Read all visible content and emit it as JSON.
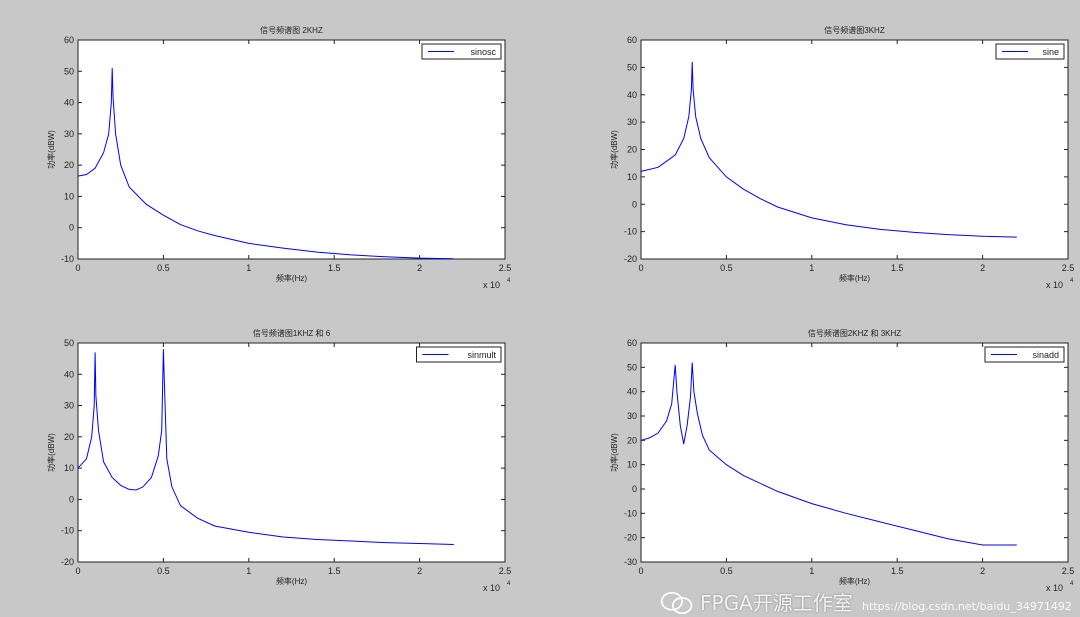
{
  "chart_data": [
    {
      "type": "line",
      "title": "信号频谱图 2KHZ",
      "xlabel": "频率(Hz)",
      "ylabel": "功率(dBW)",
      "x_multiplier": "x 10",
      "x_multiplier_exp": "4",
      "xlim": [
        0,
        25000
      ],
      "ylim": [
        -10,
        60
      ],
      "xticks": [
        "0",
        "0.5",
        "1",
        "1.5",
        "2",
        "2.5"
      ],
      "yticks": [
        "-10",
        "0",
        "10",
        "20",
        "30",
        "40",
        "50",
        "60"
      ],
      "legend_position": "top-right",
      "grid": false,
      "series": [
        {
          "name": "sinosc",
          "color": "#0000ff",
          "points": [
            [
              0,
              16.5
            ],
            [
              500,
              17
            ],
            [
              1000,
              19
            ],
            [
              1500,
              24
            ],
            [
              1800,
              30
            ],
            [
              1950,
              40
            ],
            [
              2000,
              51
            ],
            [
              2050,
              42
            ],
            [
              2200,
              30
            ],
            [
              2500,
              20
            ],
            [
              3000,
              13
            ],
            [
              4000,
              7.5
            ],
            [
              5000,
              4
            ],
            [
              6000,
              1
            ],
            [
              7000,
              -1
            ],
            [
              8000,
              -2.5
            ],
            [
              10000,
              -5
            ],
            [
              12000,
              -6.5
            ],
            [
              14000,
              -7.8
            ],
            [
              16000,
              -8.7
            ],
            [
              18000,
              -9.3
            ],
            [
              20000,
              -9.7
            ],
            [
              22000,
              -9.9
            ]
          ]
        }
      ]
    },
    {
      "type": "line",
      "title": "信号频谱图3KHZ",
      "xlabel": "频率(Hz)",
      "ylabel": "功率(dBW)",
      "x_multiplier": "x 10",
      "x_multiplier_exp": "4",
      "xlim": [
        0,
        25000
      ],
      "ylim": [
        -20,
        60
      ],
      "xticks": [
        "0",
        "0.5",
        "1",
        "1.5",
        "2",
        "2.5"
      ],
      "yticks": [
        "-20",
        "-10",
        "0",
        "10",
        "20",
        "30",
        "40",
        "50",
        "60"
      ],
      "legend_position": "top-right",
      "grid": false,
      "series": [
        {
          "name": "sine",
          "color": "#0000ff",
          "points": [
            [
              0,
              12
            ],
            [
              1000,
              13.5
            ],
            [
              2000,
              18
            ],
            [
              2500,
              24
            ],
            [
              2800,
              32
            ],
            [
              2950,
              42
            ],
            [
              3000,
              52
            ],
            [
              3050,
              42
            ],
            [
              3200,
              32
            ],
            [
              3500,
              24
            ],
            [
              4000,
              17
            ],
            [
              5000,
              10
            ],
            [
              6000,
              5.5
            ],
            [
              7000,
              2
            ],
            [
              8000,
              -1
            ],
            [
              10000,
              -5
            ],
            [
              12000,
              -7.5
            ],
            [
              14000,
              -9.2
            ],
            [
              16000,
              -10.3
            ],
            [
              18000,
              -11.1
            ],
            [
              20000,
              -11.7
            ],
            [
              22000,
              -12
            ]
          ]
        }
      ]
    },
    {
      "type": "line",
      "title": "信号频谱图1KHZ 和 6",
      "xlabel": "频率(Hz)",
      "ylabel": "功率(dBW)",
      "x_multiplier": "x 10",
      "x_multiplier_exp": "4",
      "xlim": [
        0,
        25000
      ],
      "ylim": [
        -20,
        50
      ],
      "xticks": [
        "0",
        "0.5",
        "1",
        "1.5",
        "2",
        "2.5"
      ],
      "yticks": [
        "-20",
        "-10",
        "0",
        "10",
        "20",
        "30",
        "40",
        "50"
      ],
      "legend_position": "top-right",
      "grid": false,
      "series": [
        {
          "name": "sinmult",
          "color": "#0000ff",
          "points": [
            [
              0,
              10
            ],
            [
              500,
              13
            ],
            [
              800,
              20
            ],
            [
              950,
              30
            ],
            [
              1000,
              47
            ],
            [
              1050,
              33
            ],
            [
              1200,
              22
            ],
            [
              1500,
              12
            ],
            [
              2000,
              7
            ],
            [
              2500,
              4.5
            ],
            [
              3000,
              3.2
            ],
            [
              3400,
              3
            ],
            [
              3800,
              4
            ],
            [
              4300,
              7
            ],
            [
              4700,
              14
            ],
            [
              4900,
              22
            ],
            [
              5000,
              48
            ],
            [
              5050,
              38
            ],
            [
              5200,
              13
            ],
            [
              5500,
              4
            ],
            [
              6000,
              -2
            ],
            [
              7000,
              -6
            ],
            [
              8000,
              -8.5
            ],
            [
              10000,
              -10.5
            ],
            [
              12000,
              -12
            ],
            [
              14000,
              -12.8
            ],
            [
              16000,
              -13.3
            ],
            [
              18000,
              -13.8
            ],
            [
              20000,
              -14.1
            ],
            [
              22000,
              -14.4
            ]
          ]
        }
      ]
    },
    {
      "type": "line",
      "title": "信号频谱图2KHZ 和 3KHZ",
      "xlabel": "频率(Hz)",
      "ylabel": "功率(dBW)",
      "x_multiplier": "x 10",
      "x_multiplier_exp": "4",
      "xlim": [
        0,
        25000
      ],
      "ylim": [
        -30,
        60
      ],
      "xticks": [
        "0",
        "0.5",
        "1",
        "1.5",
        "2",
        "2.5"
      ],
      "yticks": [
        "-30",
        "-20",
        "-10",
        "0",
        "10",
        "20",
        "30",
        "40",
        "50",
        "60"
      ],
      "legend_position": "top-right",
      "grid": false,
      "series": [
        {
          "name": "sinadd",
          "color": "#0000ff",
          "points": [
            [
              0,
              20
            ],
            [
              500,
              21
            ],
            [
              1000,
              23
            ],
            [
              1500,
              28
            ],
            [
              1800,
              35
            ],
            [
              2000,
              51
            ],
            [
              2100,
              40
            ],
            [
              2300,
              26
            ],
            [
              2500,
              18.5
            ],
            [
              2700,
              26
            ],
            [
              2900,
              38
            ],
            [
              3000,
              52
            ],
            [
              3100,
              40
            ],
            [
              3300,
              31
            ],
            [
              3600,
              22
            ],
            [
              4000,
              16
            ],
            [
              5000,
              10
            ],
            [
              6000,
              5.5
            ],
            [
              8000,
              -1
            ],
            [
              10000,
              -6
            ],
            [
              12000,
              -10
            ],
            [
              14000,
              -13.5
            ],
            [
              16000,
              -17
            ],
            [
              18000,
              -20.5
            ],
            [
              20000,
              -23
            ],
            [
              22000,
              -23
            ]
          ]
        }
      ]
    }
  ],
  "watermark": {
    "brand": "FPGA开源工作室",
    "url": "https://blog.csdn.net/baidu_34971492"
  }
}
